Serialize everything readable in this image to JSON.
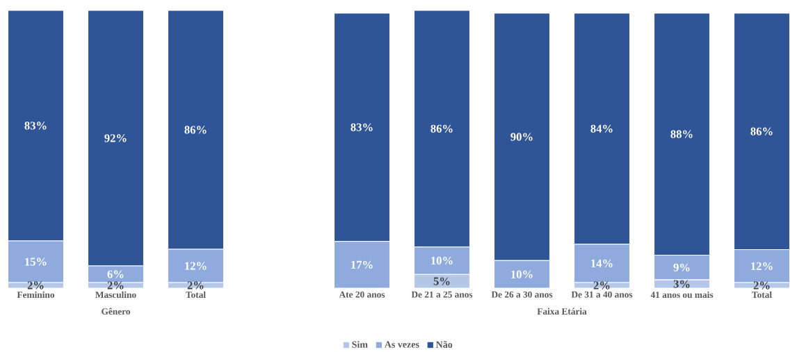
{
  "chart_data": [
    {
      "type": "bar",
      "stacked": true,
      "xlabel": "Gênero",
      "categories": [
        "Feminino",
        "Masculino",
        "Total"
      ],
      "tick_labels": "x",
      "legend": "bottom",
      "series": [
        {
          "name": "Sim",
          "color": "#b4c7e7",
          "values": [
            2,
            2,
            2
          ],
          "value_labels": [
            "2%",
            "2%",
            "2%"
          ]
        },
        {
          "name": "As vezes",
          "color": "#8faadc",
          "values": [
            15,
            6,
            12
          ],
          "value_labels": [
            "15%",
            "6%",
            "12%"
          ]
        },
        {
          "name": "Não",
          "color": "#2f5597",
          "values": [
            83,
            92,
            86
          ],
          "value_labels": [
            "83%",
            "92%",
            "86%"
          ]
        }
      ]
    },
    {
      "type": "bar",
      "stacked": true,
      "xlabel": "Faixa Etária",
      "categories": [
        "Ate 20 anos",
        "De 21 a 25 anos",
        "De 26 a 30 anos",
        "De 31 a 40 anos",
        "41 anos ou mais",
        "Total"
      ],
      "tick_labels": "x",
      "series": [
        {
          "color": "#b4c7e7",
          "values": [
            0,
            5,
            0,
            2,
            3,
            2
          ],
          "value_labels": [
            null,
            "5%",
            null,
            "2%",
            "3%",
            "2%"
          ]
        },
        {
          "color": "#8faadc",
          "values": [
            17,
            10,
            10,
            14,
            9,
            12
          ],
          "value_labels": [
            "17%",
            "10%",
            "10%",
            "14%",
            "9%",
            "12%"
          ]
        },
        {
          "color": "#2f5597",
          "values": [
            83,
            86,
            90,
            84,
            88,
            86
          ],
          "value_labels": [
            "83%",
            "86%",
            "90%",
            "84%",
            "88%",
            "86%"
          ]
        }
      ]
    }
  ]
}
